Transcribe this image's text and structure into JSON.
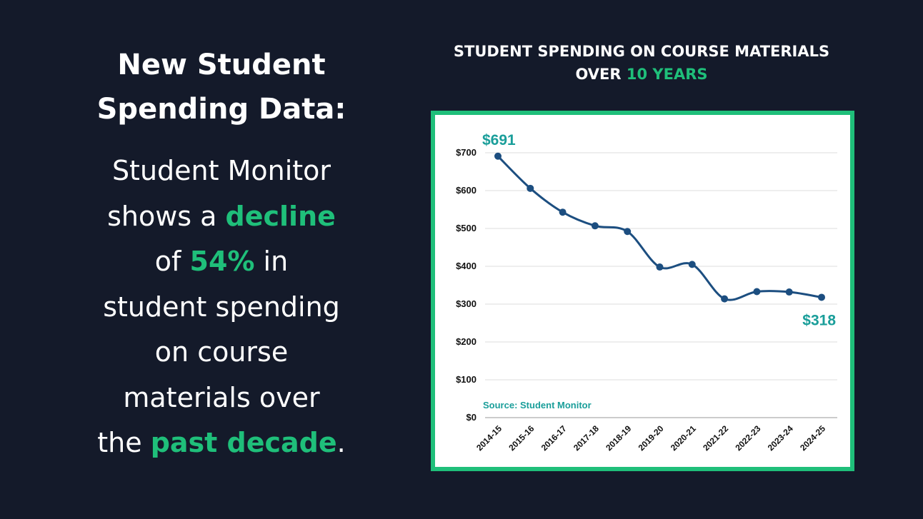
{
  "headline": {
    "line1": "New Student",
    "line2": "Spending Data:"
  },
  "body": {
    "line1": "Student Monitor",
    "line2_pre": "shows a ",
    "line2_hl": "decline",
    "line3_pre": "of ",
    "line3_hl": "54%",
    "line3_post": " in",
    "line4": "student spending",
    "line5": "on course",
    "line6": "materials over",
    "line7_pre": "the ",
    "line7_hl": "past decade",
    "line7_post": "."
  },
  "chart_title": {
    "line1": "STUDENT SPENDING ON COURSE MATERIALS",
    "line2_pre": "OVER ",
    "line2_hl": "10 YEARS"
  },
  "colors": {
    "background": "#141a2a",
    "accent": "#1fbf7a",
    "line": "#1c4e80",
    "annotation": "#1a9e9a"
  },
  "chart_data": {
    "type": "line",
    "categories": [
      "2014-15",
      "2015-16",
      "2016-17",
      "2017-18",
      "2018-19",
      "2019-20",
      "2020-21",
      "2021-22",
      "2022-23",
      "2023-24",
      "2024-25"
    ],
    "series": [
      {
        "values": [
          691,
          606,
          543,
          507,
          492,
          398,
          405,
          314,
          333,
          332,
          318
        ]
      }
    ],
    "ylim": [
      0,
      700
    ],
    "yticks": [
      "$0",
      "$100",
      "$200",
      "$300",
      "$400",
      "$500",
      "$600",
      "$700"
    ],
    "annotations": {
      "start": "$691",
      "end": "$318"
    },
    "source": "Source: Student Monitor",
    "grid": true
  }
}
